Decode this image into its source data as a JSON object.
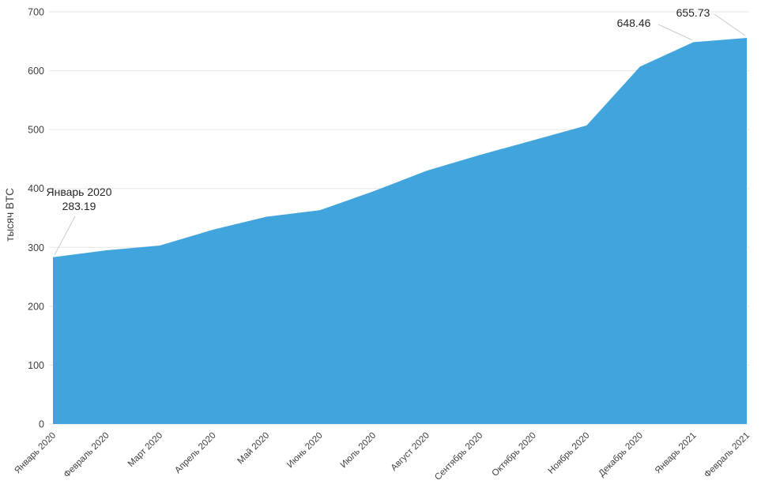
{
  "chart_data": {
    "type": "area",
    "title": "",
    "xlabel": "",
    "ylabel": "тысяч BTC",
    "categories": [
      "Январь 2020",
      "Февраль 2020",
      "Март 2020",
      "Апрель 2020",
      "Май 2020",
      "Июнь 2020",
      "Июль 2020",
      "Август 2020",
      "Сентябрь 2020",
      "Октябрь 2020",
      "Ноябрь 2020",
      "Декабрь 2020",
      "Январь 2021",
      "Февраль 2021"
    ],
    "values": [
      283.19,
      295,
      303,
      330,
      352,
      363,
      395,
      430,
      457,
      482,
      507,
      607,
      648.46,
      655.73
    ],
    "ylim": [
      0,
      700
    ],
    "yticks": [
      0,
      100,
      200,
      300,
      400,
      500,
      600,
      700
    ],
    "grid": true,
    "legend": "none",
    "colors": {
      "area": "#41a4dd",
      "grid": "#e6e6e6",
      "axis_text": "#404040",
      "annotation_text": "#262626",
      "callout_line": "#c9c9c9",
      "background": "#ffffff"
    },
    "annotations": [
      {
        "lines": [
          "Январь 2020",
          "283.19"
        ],
        "target_index": 0
      },
      {
        "lines": [
          "648.46"
        ],
        "target_index": 12
      },
      {
        "lines": [
          "655.73"
        ],
        "target_index": 13
      }
    ]
  }
}
